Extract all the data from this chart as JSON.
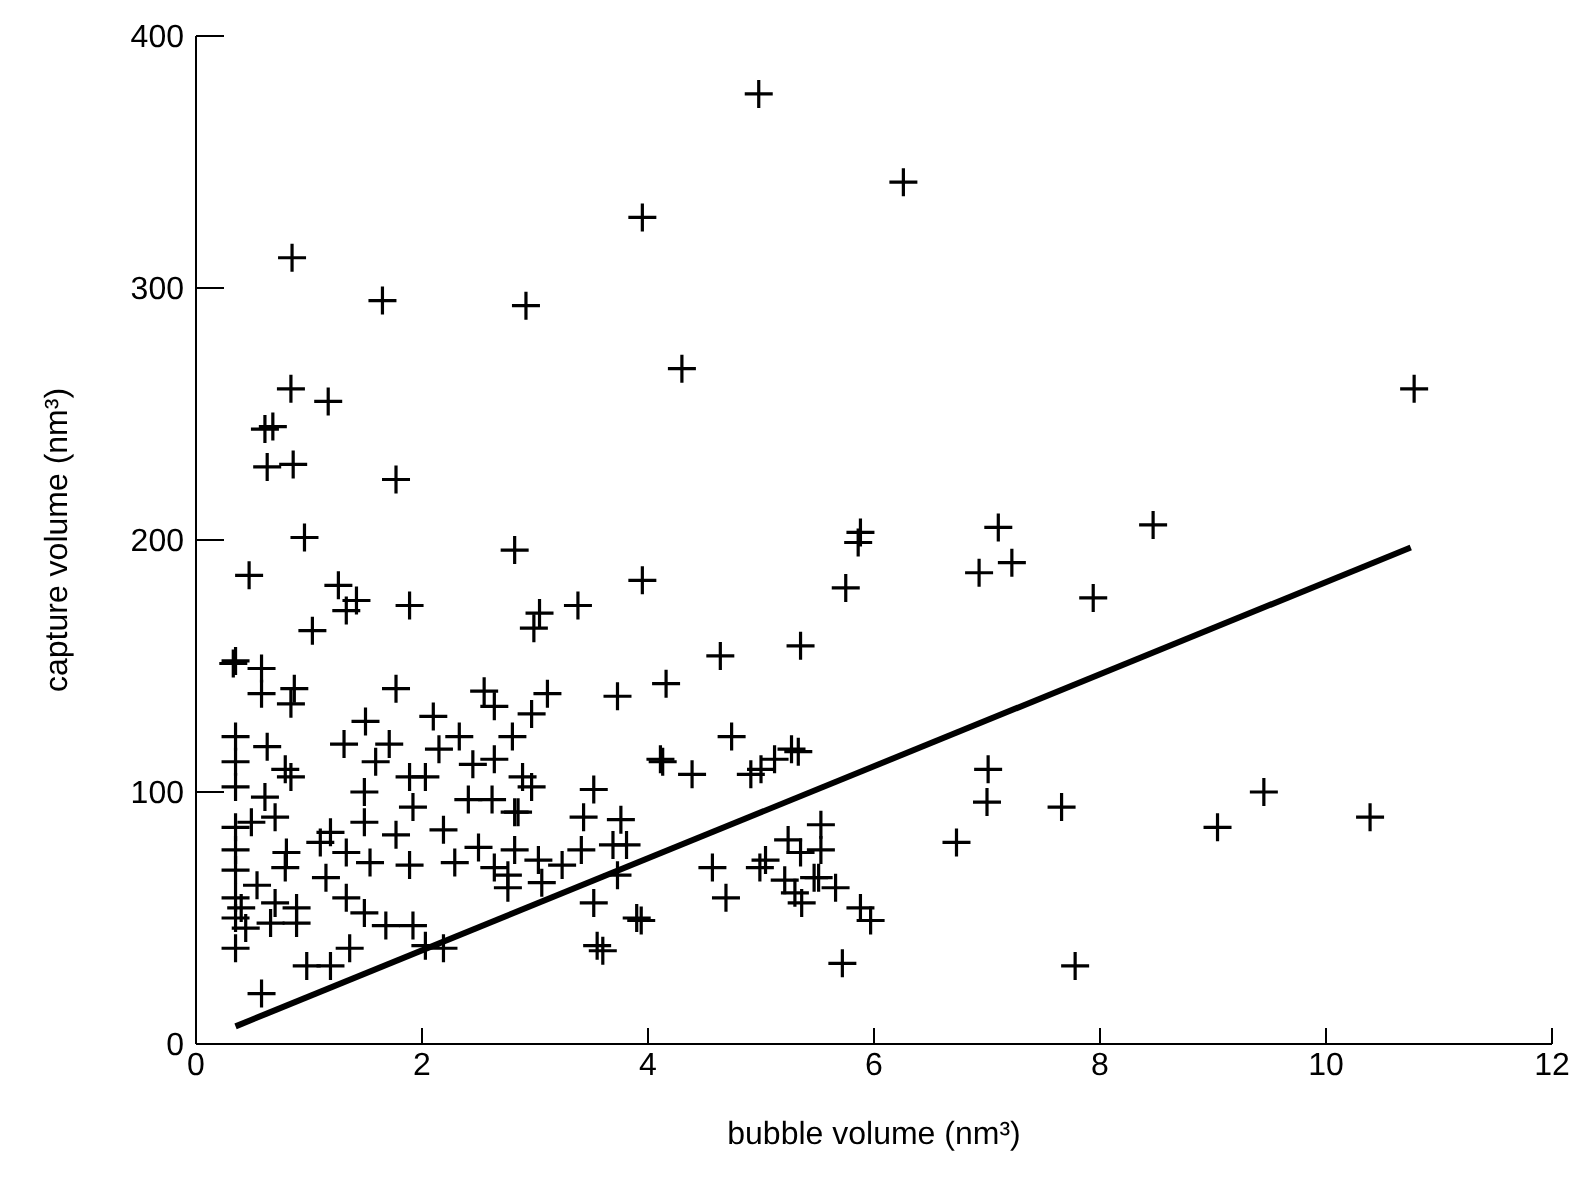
{
  "chart_data": {
    "type": "scatter",
    "xlabel": "bubble volume (nm³)",
    "ylabel": "capture volume (nm³)",
    "xlim": [
      0,
      12
    ],
    "ylim": [
      0,
      400
    ],
    "xticks": [
      0,
      2,
      4,
      6,
      8,
      10,
      12
    ],
    "yticks": [
      0,
      100,
      200,
      300,
      400
    ],
    "grid": false,
    "legend": false,
    "marker": "cross",
    "series": [
      {
        "color": "#000000",
        "x": [
          4.98,
          6.26,
          10.78,
          5.88,
          5.86,
          5.75,
          7.1,
          7.22,
          6.93,
          8.47,
          7.94,
          5.35,
          5.33,
          7.01,
          7.0,
          7.66,
          9.45,
          9.04,
          10.39,
          6.73,
          5.53,
          5.53,
          5.35,
          5.47,
          5.66,
          5.36,
          5.88,
          5.97,
          5.72,
          7.78,
          1.65,
          2.92,
          4.3,
          0.84,
          1.17,
          0.61,
          0.68,
          0.63,
          0.86,
          1.77,
          0.96,
          2.82,
          0.47,
          1.26,
          1.42,
          1.33,
          1.89,
          1.03,
          3.04,
          2.99,
          3.38,
          3.95,
          0.35,
          0.58,
          0.85,
          3.95,
          0.33,
          0.58,
          0.87,
          0.84,
          1.77,
          2.55,
          2.64,
          1.5,
          2.1,
          0.35,
          0.63,
          1.31,
          1.71,
          2.33,
          2.8,
          2.15,
          0.35,
          0.79,
          0.84,
          1.59,
          1.89,
          2.03,
          2.45,
          2.64,
          2.89,
          0.35,
          0.61,
          1.49,
          1.92,
          2.41,
          2.62,
          2.85,
          0.35,
          0.49,
          0.7,
          1.19,
          1.49,
          2.19,
          1.77,
          0.35,
          0.8,
          1.1,
          1.33,
          1.54,
          1.89,
          2.29,
          2.5,
          2.64,
          0.35,
          0.54,
          0.79,
          1.15,
          1.33,
          0.35,
          0.4,
          0.7,
          0.89,
          0.35,
          0.44,
          0.66,
          0.89,
          1.49,
          1.68,
          1.92,
          0.35,
          0.98,
          1.19,
          1.36,
          0.58,
          2.03,
          2.19,
          2.76,
          4.64,
          3.11,
          3.73,
          4.16,
          2.97,
          4.74,
          4.11,
          4.13,
          4.39,
          4.91,
          5.0,
          5.12,
          5.27,
          2.97,
          3.52,
          2.82,
          3.43,
          3.76,
          3.69,
          3.81,
          2.82,
          3.03,
          3.24,
          3.41,
          2.76,
          3.06,
          3.73,
          3.52,
          3.9,
          3.94,
          3.55,
          3.6,
          4.57,
          4.69,
          4.99,
          5.04,
          5.24,
          5.21,
          5.3,
          5.51
        ],
        "values": [
          377,
          342,
          260,
          203,
          199,
          181,
          205,
          191,
          187,
          206,
          177,
          158,
          116,
          109,
          96,
          94,
          100,
          86,
          90,
          80,
          87,
          77,
          76,
          66,
          62,
          56,
          54,
          49,
          32,
          31,
          295,
          293,
          268,
          260,
          255,
          244,
          245,
          229,
          230,
          224,
          201,
          196,
          186,
          182,
          176,
          172,
          174,
          164,
          171,
          165,
          174,
          184,
          152,
          149,
          312,
          328,
          151,
          139,
          141,
          135,
          141,
          140,
          134,
          128,
          130,
          122,
          118,
          119,
          119,
          122,
          122,
          117,
          112,
          109,
          106,
          112,
          106,
          106,
          111,
          113,
          106,
          102,
          98,
          100,
          94,
          97,
          97,
          92,
          86,
          88,
          90,
          84,
          88,
          85,
          83,
          77,
          76,
          80,
          76,
          72,
          71,
          72,
          78,
          70,
          69,
          63,
          70,
          66,
          58,
          58,
          54,
          56,
          54,
          50,
          46,
          48,
          48,
          52,
          47,
          47,
          38,
          31,
          31,
          38,
          20,
          39,
          38,
          62,
          154,
          139,
          138,
          143,
          131,
          122,
          113,
          112,
          107,
          107,
          109,
          113,
          117,
          102,
          101,
          92,
          90,
          89,
          79,
          79,
          77,
          73,
          71,
          77,
          67,
          64,
          67,
          56,
          50,
          49,
          39,
          37,
          70,
          58,
          70,
          73,
          81,
          65,
          60,
          66
        ]
      },
      {
        "type": "line",
        "color": "#000000",
        "marker": "none",
        "line_style": "solid",
        "x": [
          0.35,
          10.75
        ],
        "values": [
          7,
          197
        ]
      }
    ]
  }
}
